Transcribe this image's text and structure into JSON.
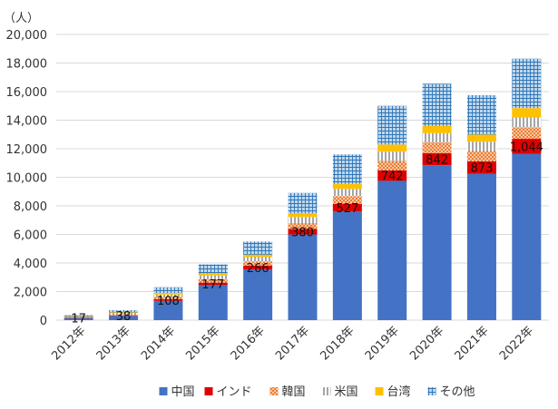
{
  "chart_data": {
    "type": "bar",
    "stacked": true,
    "ylabel": "（人）",
    "ylim": [
      0,
      20000
    ],
    "yticks": [
      "0",
      "2,000",
      "4,000",
      "6,000",
      "8,000",
      "10,000",
      "12,000",
      "14,000",
      "16,000",
      "18,000",
      "20,000"
    ],
    "grid": true,
    "legend": "bottom",
    "categories": [
      "2012年",
      "2013年",
      "2014年",
      "2015年",
      "2016年",
      "2017年",
      "2018年",
      "2019年",
      "2020年",
      "2021年",
      "2022年"
    ],
    "series": [
      {
        "name": "中国",
        "color": "#4472C4",
        "pattern": "solid",
        "values": [
          150,
          300,
          1350,
          2450,
          3550,
          6000,
          7600,
          9750,
          10850,
          10250,
          11650
        ]
      },
      {
        "name": "インド",
        "color": "#E00000",
        "pattern": "solid",
        "values": [
          17,
          38,
          108,
          177,
          266,
          380,
          527,
          742,
          842,
          873,
          1044
        ]
      },
      {
        "name": "韓国",
        "color": "#ED7D31",
        "pattern": "dots",
        "values": [
          50,
          90,
          180,
          240,
          300,
          420,
          560,
          650,
          750,
          720,
          800
        ]
      },
      {
        "name": "米国",
        "color": "#A5A5A5",
        "pattern": "vlines",
        "values": [
          40,
          80,
          150,
          260,
          300,
          420,
          500,
          650,
          650,
          650,
          700
        ]
      },
      {
        "name": "台湾",
        "color": "#FFC000",
        "pattern": "solid",
        "values": [
          20,
          40,
          110,
          140,
          170,
          260,
          350,
          500,
          500,
          500,
          650
        ]
      },
      {
        "name": "その他",
        "color": "#9DC3E6",
        "pattern": "grid",
        "values": [
          73,
          152,
          402,
          633,
          914,
          1420,
          2063,
          2708,
          2958,
          2757,
          3456
        ]
      }
    ],
    "data_labels": {
      "series": "インド",
      "values": [
        "17",
        "38",
        "108",
        "177",
        "266",
        "380",
        "527",
        "742",
        "842",
        "873",
        "1,044"
      ]
    }
  }
}
